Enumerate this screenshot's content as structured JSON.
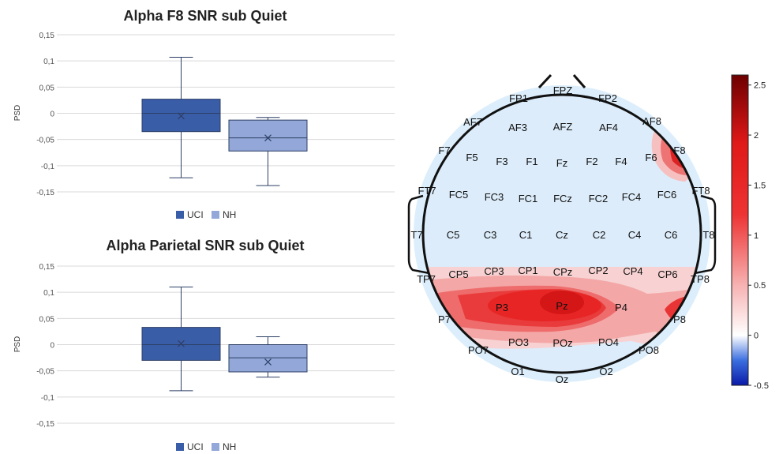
{
  "chart_data": [
    {
      "type": "box",
      "title": "Alpha F8 SNR sub Quiet",
      "ylabel": "PSD",
      "ylim": [
        -0.15,
        0.15
      ],
      "yticks": [
        "0,15",
        "0,1",
        "0,05",
        "0",
        "-0,05",
        "-0,1",
        "-0,15"
      ],
      "legend": [
        "UCI",
        "NH"
      ],
      "legend_position": "bottom",
      "series": [
        {
          "name": "UCI",
          "color": "#3a5da8",
          "whisker_low": -0.123,
          "q1": -0.035,
          "median": 0.0,
          "q3": 0.027,
          "whisker_high": 0.107,
          "mean": -0.005
        },
        {
          "name": "NH",
          "color": "#93a8d8",
          "whisker_low": -0.138,
          "q1": -0.072,
          "median": -0.047,
          "q3": -0.013,
          "whisker_high": -0.008,
          "mean": -0.047
        }
      ]
    },
    {
      "type": "box",
      "title": "Alpha Parietal SNR sub Quiet",
      "ylabel": "PSD",
      "ylim": [
        -0.15,
        0.15
      ],
      "yticks": [
        "0,15",
        "0,1",
        "0,05",
        "0",
        "-0,05",
        "-0,1",
        "-0,15"
      ],
      "legend": [
        "UCI",
        "NH"
      ],
      "legend_position": "bottom",
      "series": [
        {
          "name": "UCI",
          "color": "#3a5da8",
          "whisker_low": -0.088,
          "q1": -0.03,
          "median": 0.0,
          "q3": 0.033,
          "whisker_high": 0.11,
          "mean": 0.002
        },
        {
          "name": "NH",
          "color": "#93a8d8",
          "whisker_low": -0.062,
          "q1": -0.052,
          "median": -0.025,
          "q3": 0.0,
          "whisker_high": 0.015,
          "mean": -0.033
        }
      ]
    },
    {
      "type": "heatmap",
      "subtype": "scalp topography",
      "colorbar": {
        "min": -0.5,
        "max": 2.6,
        "ticks": [
          "2.5",
          "2",
          "1.5",
          "1",
          "0.5",
          "0",
          "-0.5"
        ]
      },
      "electrodes": [
        "FPZ",
        "FP1",
        "FP2",
        "AF7",
        "AF3",
        "AFZ",
        "AF4",
        "AF8",
        "F7",
        "F5",
        "F3",
        "F1",
        "Fz",
        "F2",
        "F4",
        "F6",
        "F8",
        "FT7",
        "FC5",
        "FC3",
        "FC1",
        "FCz",
        "FC2",
        "FC4",
        "FC6",
        "FT8",
        "T7",
        "C5",
        "C3",
        "C1",
        "Cz",
        "C2",
        "C4",
        "C6",
        "T8",
        "TP7",
        "CP5",
        "CP3",
        "CP1",
        "CPz",
        "CP2",
        "CP4",
        "CP6",
        "TP8",
        "P7",
        "P3",
        "Pz",
        "P4",
        "P8",
        "PO7",
        "PO3",
        "POz",
        "PO4",
        "PO8",
        "O1",
        "Oz",
        "O2"
      ]
    }
  ]
}
